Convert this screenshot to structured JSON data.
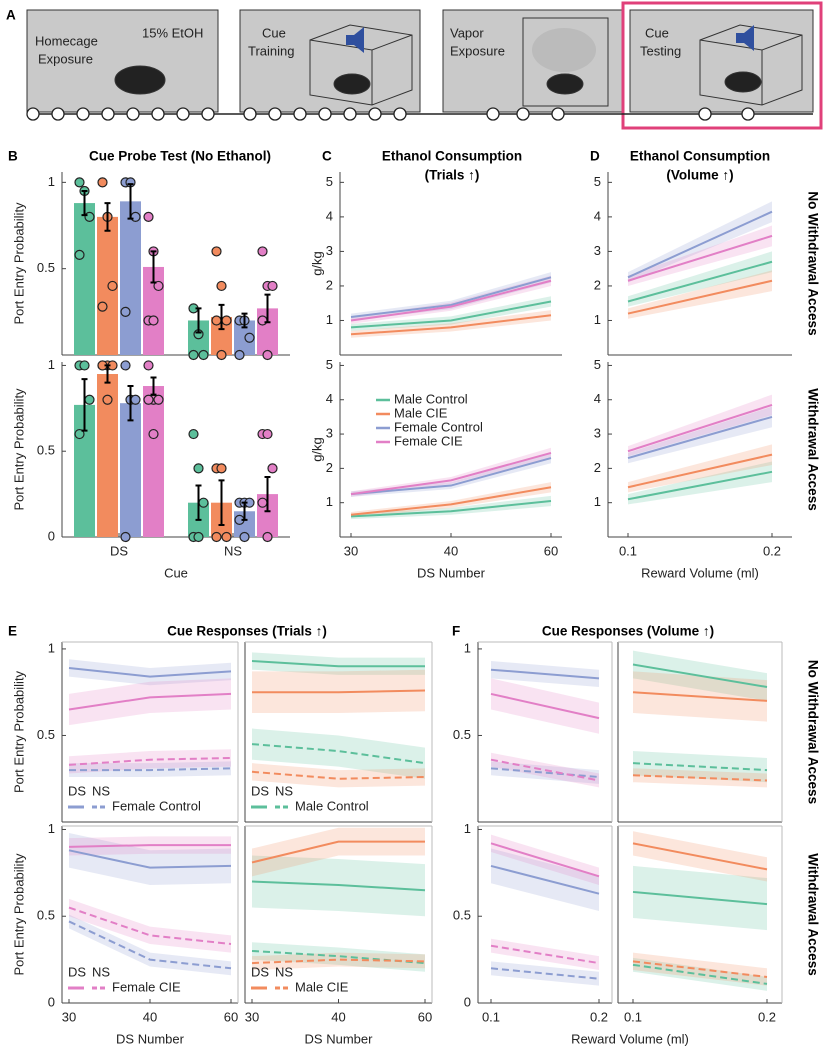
{
  "timeline": {
    "panel": "A",
    "stages": [
      {
        "label": [
          "Homecage",
          "Exposure"
        ],
        "note": "15% EtOH"
      },
      {
        "label": [
          "Cue",
          "Training"
        ]
      },
      {
        "label": [
          "Vapor",
          "Exposure"
        ]
      },
      {
        "label": [
          "Cue",
          "Testing"
        ]
      }
    ]
  },
  "chart_data": [
    {
      "type": "bar",
      "panel": "B",
      "title": "Cue Probe Test (No Ethanol)",
      "ylabel": "Port Entry Probability",
      "ylim": [
        0,
        1.06
      ],
      "yticks": [
        0.5,
        1
      ],
      "series": [
        {
          "color": "#5cbf9b",
          "values": [
            0.88,
            0.2
          ],
          "err": [
            0.07,
            0.07
          ],
          "points": [
            [
              1,
              0.95,
              0.8,
              0.58
            ],
            [
              0.27,
              0.12,
              0,
              0
            ]
          ]
        },
        {
          "color": "#f28b5e",
          "values": [
            0.8,
            0.22
          ],
          "err": [
            0.08,
            0.07
          ],
          "points": [
            [
              1,
              0.8,
              0.4,
              0.28
            ],
            [
              0.6,
              0.4,
              0.2,
              0.2,
              0
            ]
          ]
        },
        {
          "color": "#8c9dd1",
          "values": [
            0.89,
            0.2
          ],
          "err": [
            0.1,
            0.04
          ],
          "points": [
            [
              1,
              1,
              0.8,
              0.25
            ],
            [
              0.2,
              0.2,
              0.1,
              0
            ]
          ]
        },
        {
          "color": "#e27fc6",
          "values": [
            0.51,
            0.27
          ],
          "err": [
            0.09,
            0.08
          ],
          "points": [
            [
              0.8,
              0.6,
              0.4,
              0.2,
              0.2
            ],
            [
              0.6,
              0.4,
              0.4,
              0.2,
              0
            ]
          ]
        }
      ]
    },
    {
      "type": "bar",
      "ylabel": "Port Entry Probability",
      "xlabel": "Cue",
      "categories": [
        "DS",
        "NS"
      ],
      "ylim": [
        0,
        1.02
      ],
      "yticks": [
        0,
        0.5,
        1
      ],
      "series": [
        {
          "color": "#5cbf9b",
          "values": [
            0.77,
            0.2
          ],
          "err": [
            0.15,
            0.1
          ],
          "points": [
            [
              1,
              1,
              0.8,
              0.6
            ],
            [
              0.6,
              0.4,
              0.2,
              0,
              0
            ]
          ]
        },
        {
          "color": "#f28b5e",
          "values": [
            0.95,
            0.2
          ],
          "err": [
            0.05,
            0.13
          ],
          "points": [
            [
              1,
              1,
              1,
              1,
              0.8
            ],
            [
              0.4,
              0.4,
              0,
              0
            ]
          ]
        },
        {
          "color": "#8c9dd1",
          "values": [
            0.78,
            0.15
          ],
          "err": [
            0.1,
            0.05
          ],
          "points": [
            [
              1,
              0.8,
              0.8,
              0
            ],
            [
              0.2,
              0.2,
              0.2,
              0.1,
              0
            ]
          ]
        },
        {
          "color": "#e27fc6",
          "values": [
            0.88,
            0.25
          ],
          "err": [
            0.05,
            0.1
          ],
          "points": [
            [
              1,
              0.8,
              0.8,
              0.8,
              0.6
            ],
            [
              0.6,
              0.6,
              0.4,
              0.2,
              0
            ]
          ]
        }
      ]
    },
    {
      "type": "line",
      "panel": "C",
      "title": [
        "Ethanol Consumption",
        "(Trials ↑)"
      ],
      "ylabel": "g/kg",
      "ylim": [
        0,
        5.3
      ],
      "yticks": [
        1,
        2,
        3,
        4,
        5
      ],
      "series": [
        {
          "color": "#5cbf9b",
          "values": [
            0.8,
            1.0,
            1.55
          ],
          "err": [
            0.1,
            0.12,
            0.15
          ]
        },
        {
          "color": "#f28b5e",
          "values": [
            0.6,
            0.8,
            1.15
          ],
          "err": [
            0.1,
            0.12,
            0.15
          ]
        },
        {
          "color": "#8c9dd1",
          "values": [
            1.1,
            1.45,
            2.25
          ],
          "err": [
            0.1,
            0.12,
            0.15
          ]
        },
        {
          "color": "#e27fc6",
          "values": [
            1.0,
            1.4,
            2.15
          ],
          "err": [
            0.1,
            0.12,
            0.15
          ]
        }
      ]
    },
    {
      "type": "line",
      "ylabel": "g/kg",
      "xlabel": "DS Number",
      "categories": [
        "30",
        "40",
        "60"
      ],
      "ylim": [
        0,
        5.1
      ],
      "yticks": [
        1,
        2,
        3,
        4,
        5
      ],
      "legend": "center left",
      "series": [
        {
          "name": "Male Control",
          "color": "#5cbf9b",
          "values": [
            0.6,
            0.75,
            1.05
          ],
          "err": [
            0.08,
            0.1,
            0.15
          ]
        },
        {
          "name": "Male CIE",
          "color": "#f28b5e",
          "values": [
            0.65,
            0.95,
            1.45
          ],
          "err": [
            0.08,
            0.1,
            0.15
          ]
        },
        {
          "name": "Female Control",
          "color": "#8c9dd1",
          "values": [
            1.25,
            1.5,
            2.3
          ],
          "err": [
            0.08,
            0.1,
            0.15
          ]
        },
        {
          "name": "Female CIE",
          "color": "#e27fc6",
          "values": [
            1.25,
            1.65,
            2.45
          ],
          "err": [
            0.08,
            0.1,
            0.15
          ]
        }
      ]
    },
    {
      "type": "line",
      "panel": "D",
      "title": [
        "Ethanol Consumption",
        "(Volume ↑)"
      ],
      "right_label": "No Withdrawal Access",
      "ylim": [
        0,
        5.3
      ],
      "yticks": [
        1,
        2,
        3,
        4,
        5
      ],
      "series": [
        {
          "color": "#5cbf9b",
          "values": [
            1.55,
            2.7
          ],
          "err": [
            0.15,
            0.3
          ]
        },
        {
          "color": "#f28b5e",
          "values": [
            1.2,
            2.15
          ],
          "err": [
            0.15,
            0.3
          ]
        },
        {
          "color": "#8c9dd1",
          "values": [
            2.25,
            4.15
          ],
          "err": [
            0.15,
            0.3
          ]
        },
        {
          "color": "#e27fc6",
          "values": [
            2.15,
            3.45
          ],
          "err": [
            0.15,
            0.3
          ]
        }
      ]
    },
    {
      "type": "line",
      "right_label": "Withdrawal Access",
      "xlabel": "Reward Volume (ml)",
      "categories": [
        "0.1",
        "0.2"
      ],
      "ylim": [
        0,
        5.1
      ],
      "yticks": [
        1,
        2,
        3,
        4,
        5
      ],
      "series": [
        {
          "color": "#5cbf9b",
          "values": [
            1.1,
            1.9
          ],
          "err": [
            0.15,
            0.3
          ]
        },
        {
          "color": "#f28b5e",
          "values": [
            1.45,
            2.4
          ],
          "err": [
            0.15,
            0.3
          ]
        },
        {
          "color": "#8c9dd1",
          "values": [
            2.3,
            3.5
          ],
          "err": [
            0.15,
            0.3
          ]
        },
        {
          "color": "#e27fc6",
          "values": [
            2.5,
            3.85
          ],
          "err": [
            0.15,
            0.3
          ]
        }
      ]
    },
    {
      "type": "line",
      "panel": "E",
      "title": "Cue Responses (Trials ↑)",
      "ylabel": "Port Entry Probability",
      "ylim": [
        0,
        1.04
      ],
      "yticks": [
        0.5,
        1
      ],
      "legend": {
        "cues": [
          "DS",
          "NS"
        ],
        "group": "Female Control",
        "color": "#8c9dd1"
      },
      "series": [
        {
          "color": "#8c9dd1",
          "dashed": false,
          "values": [
            0.89,
            0.84,
            0.87
          ],
          "err": [
            0.05,
            0.05,
            0.05
          ]
        },
        {
          "color": "#8c9dd1",
          "dashed": true,
          "values": [
            0.3,
            0.3,
            0.31
          ],
          "err": [
            0.04,
            0.04,
            0.04
          ]
        },
        {
          "color": "#e27fc6",
          "dashed": false,
          "values": [
            0.65,
            0.72,
            0.74
          ],
          "err": [
            0.09,
            0.09,
            0.09
          ]
        },
        {
          "color": "#e27fc6",
          "dashed": true,
          "values": [
            0.33,
            0.36,
            0.37
          ],
          "err": [
            0.05,
            0.05,
            0.05
          ]
        }
      ]
    },
    {
      "type": "line",
      "ylim": [
        0,
        1.04
      ],
      "legend": {
        "cues": [
          "DS",
          "NS"
        ],
        "group": "Male Control",
        "color": "#5cbf9b"
      },
      "series": [
        {
          "color": "#5cbf9b",
          "dashed": false,
          "values": [
            0.93,
            0.9,
            0.9
          ],
          "err": [
            0.05,
            0.05,
            0.05
          ]
        },
        {
          "color": "#5cbf9b",
          "dashed": true,
          "values": [
            0.45,
            0.41,
            0.34
          ],
          "err": [
            0.09,
            0.09,
            0.09
          ]
        },
        {
          "color": "#f28b5e",
          "dashed": false,
          "values": [
            0.75,
            0.75,
            0.76
          ],
          "err": [
            0.12,
            0.12,
            0.12
          ]
        },
        {
          "color": "#f28b5e",
          "dashed": true,
          "values": [
            0.29,
            0.25,
            0.26
          ],
          "err": [
            0.05,
            0.05,
            0.05
          ]
        }
      ]
    },
    {
      "type": "line",
      "ylabel": "Port Entry Probability",
      "xlabel": "DS Number",
      "categories": [
        "30",
        "40",
        "60"
      ],
      "ylim": [
        0,
        1.02
      ],
      "yticks": [
        0,
        0.5,
        1
      ],
      "legend": {
        "cues": [
          "DS",
          "NS"
        ],
        "group": "Female CIE",
        "color": "#e27fc6"
      },
      "series": [
        {
          "color": "#8c9dd1",
          "dashed": false,
          "values": [
            0.88,
            0.78,
            0.79
          ],
          "err": [
            0.1,
            0.1,
            0.1
          ]
        },
        {
          "color": "#8c9dd1",
          "dashed": true,
          "values": [
            0.47,
            0.25,
            0.2
          ],
          "err": [
            0.04,
            0.04,
            0.04
          ]
        },
        {
          "color": "#e27fc6",
          "dashed": false,
          "values": [
            0.9,
            0.91,
            0.91
          ],
          "err": [
            0.05,
            0.05,
            0.05
          ]
        },
        {
          "color": "#e27fc6",
          "dashed": true,
          "values": [
            0.55,
            0.39,
            0.34
          ],
          "err": [
            0.05,
            0.05,
            0.05
          ]
        }
      ]
    },
    {
      "type": "line",
      "xlabel": "DS Number",
      "categories": [
        "30",
        "40",
        "60"
      ],
      "ylim": [
        0,
        1.02
      ],
      "legend": {
        "cues": [
          "DS",
          "NS"
        ],
        "group": "Male CIE",
        "color": "#f28b5e"
      },
      "series": [
        {
          "color": "#5cbf9b",
          "dashed": false,
          "values": [
            0.7,
            0.68,
            0.65
          ],
          "err": [
            0.15,
            0.15,
            0.15
          ]
        },
        {
          "color": "#5cbf9b",
          "dashed": true,
          "values": [
            0.3,
            0.27,
            0.23
          ],
          "err": [
            0.05,
            0.05,
            0.05
          ]
        },
        {
          "color": "#f28b5e",
          "dashed": false,
          "values": [
            0.81,
            0.93,
            0.93
          ],
          "err": [
            0.08,
            0.08,
            0.08
          ]
        },
        {
          "color": "#f28b5e",
          "dashed": true,
          "values": [
            0.23,
            0.25,
            0.24
          ],
          "err": [
            0.04,
            0.04,
            0.04
          ]
        }
      ]
    },
    {
      "type": "line",
      "panel": "F",
      "title": "Cue Responses (Volume ↑)",
      "ylim": [
        0,
        1.04
      ],
      "yticks": [
        0.5,
        1
      ],
      "series": [
        {
          "color": "#8c9dd1",
          "dashed": false,
          "values": [
            0.88,
            0.83
          ],
          "err": [
            0.05,
            0.05
          ]
        },
        {
          "color": "#8c9dd1",
          "dashed": true,
          "values": [
            0.31,
            0.26
          ],
          "err": [
            0.04,
            0.04
          ]
        },
        {
          "color": "#e27fc6",
          "dashed": false,
          "values": [
            0.74,
            0.6
          ],
          "err": [
            0.09,
            0.09
          ]
        },
        {
          "color": "#e27fc6",
          "dashed": true,
          "values": [
            0.36,
            0.24
          ],
          "err": [
            0.04,
            0.04
          ]
        }
      ]
    },
    {
      "type": "line",
      "right_label": "No Withdrawal Access",
      "ylim": [
        0,
        1.04
      ],
      "series": [
        {
          "color": "#5cbf9b",
          "dashed": false,
          "values": [
            0.91,
            0.78
          ],
          "err": [
            0.08,
            0.08
          ]
        },
        {
          "color": "#5cbf9b",
          "dashed": true,
          "values": [
            0.34,
            0.3
          ],
          "err": [
            0.07,
            0.07
          ]
        },
        {
          "color": "#f28b5e",
          "dashed": false,
          "values": [
            0.75,
            0.7
          ],
          "err": [
            0.12,
            0.12
          ]
        },
        {
          "color": "#f28b5e",
          "dashed": true,
          "values": [
            0.27,
            0.24
          ],
          "err": [
            0.04,
            0.04
          ]
        }
      ]
    },
    {
      "type": "line",
      "xlabel": "Reward Volume (ml)",
      "categories": [
        "0.1",
        "0.2"
      ],
      "ylim": [
        0,
        1.02
      ],
      "yticks": [
        0,
        0.5,
        1
      ],
      "series": [
        {
          "color": "#8c9dd1",
          "dashed": false,
          "values": [
            0.79,
            0.63
          ],
          "err": [
            0.1,
            0.1
          ]
        },
        {
          "color": "#8c9dd1",
          "dashed": true,
          "values": [
            0.2,
            0.14
          ],
          "err": [
            0.04,
            0.04
          ]
        },
        {
          "color": "#e27fc6",
          "dashed": false,
          "values": [
            0.92,
            0.73
          ],
          "err": [
            0.05,
            0.05
          ]
        },
        {
          "color": "#e27fc6",
          "dashed": true,
          "values": [
            0.33,
            0.23
          ],
          "err": [
            0.04,
            0.04
          ]
        }
      ]
    },
    {
      "type": "line",
      "right_label": "Withdrawal Access",
      "categories": [
        "0.1",
        "0.2"
      ],
      "ylim": [
        0,
        1.02
      ],
      "series": [
        {
          "color": "#5cbf9b",
          "dashed": false,
          "values": [
            0.64,
            0.57
          ],
          "err": [
            0.15,
            0.15
          ]
        },
        {
          "color": "#5cbf9b",
          "dashed": true,
          "values": [
            0.22,
            0.11
          ],
          "err": [
            0.04,
            0.04
          ]
        },
        {
          "color": "#f28b5e",
          "dashed": false,
          "values": [
            0.92,
            0.77
          ],
          "err": [
            0.07,
            0.07
          ]
        },
        {
          "color": "#f28b5e",
          "dashed": true,
          "values": [
            0.24,
            0.15
          ],
          "err": [
            0.05,
            0.05
          ]
        }
      ]
    }
  ]
}
